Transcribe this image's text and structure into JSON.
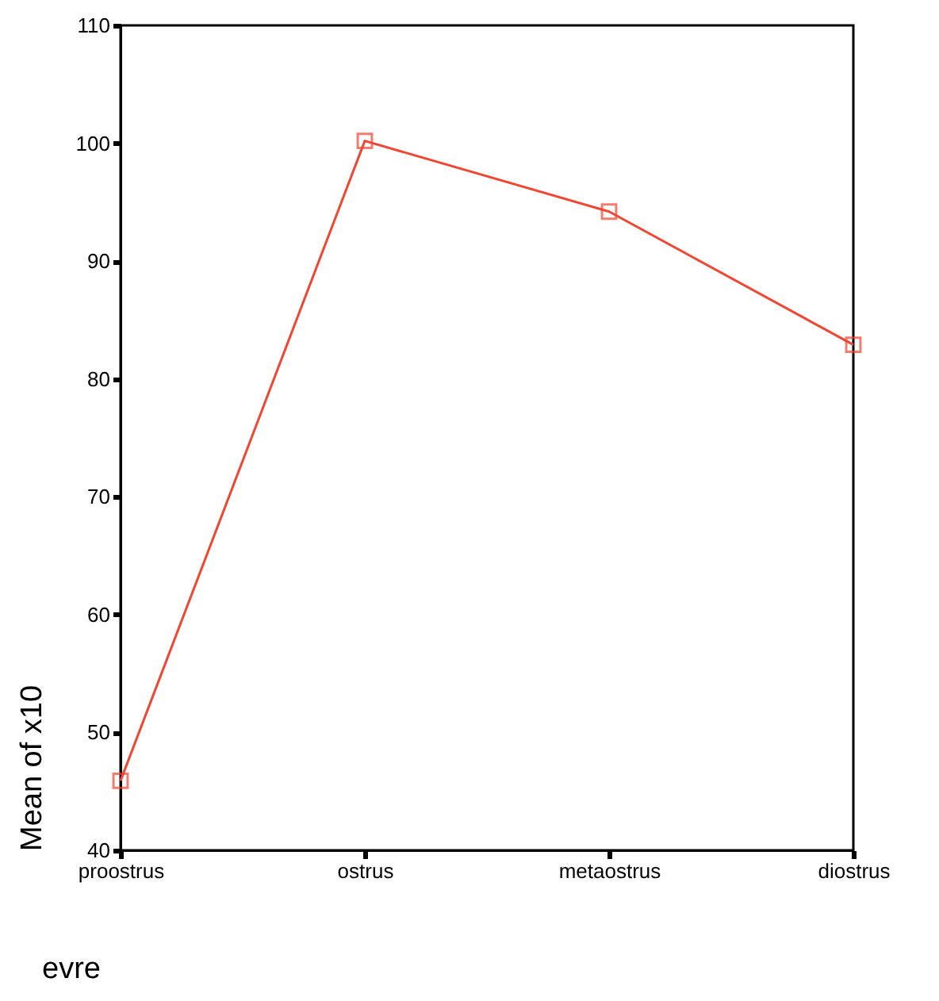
{
  "chart_data": {
    "type": "line",
    "xlabel": "evre",
    "ylabel": "Mean of x10",
    "categories": [
      "proostrus",
      "ostrus",
      "metaostrus",
      "diostrus"
    ],
    "series": [
      {
        "color": "#f04632",
        "values": [
          45.9,
          100.2,
          94.2,
          82.9
        ]
      }
    ],
    "ylim": [
      40,
      110
    ],
    "yticks": [
      40,
      50,
      60,
      70,
      80,
      90,
      100,
      110
    ],
    "marker": "square",
    "line_style": "solid",
    "grid": false
  }
}
